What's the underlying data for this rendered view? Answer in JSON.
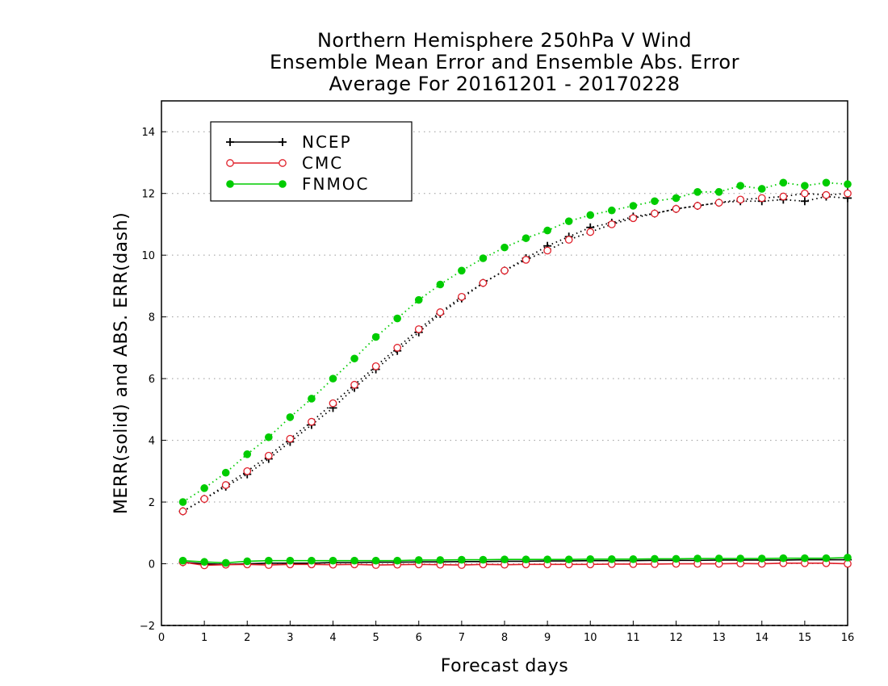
{
  "chart_data": {
    "type": "line",
    "title": "Northern Hemisphere 250hPa V Wind",
    "subtitle": "Ensemble Mean Error and Ensemble Abs. Error",
    "subtitle2": "Average For 20161201 - 20170228",
    "xlabel": "Forecast days",
    "ylabel": "MERR(solid) and ABS. ERR(dash)",
    "xlim": [
      0,
      16
    ],
    "ylim": [
      -2,
      15
    ],
    "xticks": [
      0,
      1,
      2,
      3,
      4,
      5,
      6,
      7,
      8,
      9,
      10,
      11,
      12,
      13,
      14,
      15,
      16
    ],
    "yticks": [
      -2,
      0,
      2,
      4,
      6,
      8,
      10,
      12,
      14
    ],
    "grid": "horizontal dotted",
    "legend_position": "top-left",
    "x": [
      0.5,
      1,
      1.5,
      2,
      2.5,
      3,
      3.5,
      4,
      4.5,
      5,
      5.5,
      6,
      6.5,
      7,
      7.5,
      8,
      8.5,
      9,
      9.5,
      10,
      10.5,
      11,
      11.5,
      12,
      12.5,
      13,
      13.5,
      14,
      14.5,
      15,
      15.5,
      16
    ],
    "series": [
      {
        "name": "NCEP",
        "color": "#000000",
        "marker": "plus",
        "abs_err": [
          1.7,
          2.1,
          2.5,
          2.9,
          3.4,
          3.95,
          4.5,
          5.05,
          5.7,
          6.3,
          6.9,
          7.5,
          8.1,
          8.6,
          9.1,
          9.5,
          9.9,
          10.3,
          10.6,
          10.9,
          11.05,
          11.25,
          11.35,
          11.5,
          11.6,
          11.7,
          11.75,
          11.75,
          11.8,
          11.75,
          11.9,
          11.85
        ],
        "mean_err": [
          0.05,
          0.0,
          -0.02,
          0.0,
          0.02,
          0.02,
          0.02,
          0.04,
          0.04,
          0.05,
          0.05,
          0.06,
          0.06,
          0.07,
          0.07,
          0.08,
          0.08,
          0.09,
          0.09,
          0.1,
          0.1,
          0.1,
          0.11,
          0.11,
          0.11,
          0.12,
          0.12,
          0.12,
          0.12,
          0.13,
          0.13,
          0.13
        ]
      },
      {
        "name": "CMC",
        "color": "#e0202a",
        "marker": "open-circle",
        "abs_err": [
          1.7,
          2.1,
          2.55,
          3.0,
          3.5,
          4.05,
          4.6,
          5.2,
          5.8,
          6.4,
          7.0,
          7.6,
          8.15,
          8.65,
          9.1,
          9.5,
          9.85,
          10.15,
          10.5,
          10.75,
          11.0,
          11.2,
          11.35,
          11.5,
          11.6,
          11.7,
          11.8,
          11.85,
          11.9,
          12.0,
          11.95,
          12.0
        ],
        "mean_err": [
          0.05,
          -0.05,
          -0.03,
          -0.02,
          -0.04,
          -0.02,
          -0.02,
          -0.03,
          -0.02,
          -0.04,
          -0.03,
          -0.02,
          -0.03,
          -0.04,
          -0.02,
          -0.03,
          -0.02,
          -0.02,
          -0.02,
          -0.02,
          -0.01,
          -0.01,
          -0.01,
          0.0,
          0.0,
          0.0,
          0.01,
          0.0,
          0.02,
          0.02,
          0.02,
          0.0
        ]
      },
      {
        "name": "FNMOC",
        "color": "#00cc00",
        "marker": "filled-circle",
        "abs_err": [
          2.0,
          2.45,
          2.95,
          3.55,
          4.1,
          4.75,
          5.35,
          6.0,
          6.65,
          7.35,
          7.95,
          8.55,
          9.05,
          9.5,
          9.9,
          10.25,
          10.55,
          10.8,
          11.1,
          11.3,
          11.45,
          11.6,
          11.75,
          11.85,
          12.05,
          12.05,
          12.25,
          12.15,
          12.35,
          12.25,
          12.35,
          12.3
        ],
        "mean_err": [
          0.1,
          0.06,
          0.03,
          0.08,
          0.1,
          0.1,
          0.1,
          0.1,
          0.1,
          0.1,
          0.1,
          0.12,
          0.12,
          0.13,
          0.13,
          0.14,
          0.14,
          0.14,
          0.14,
          0.15,
          0.15,
          0.15,
          0.16,
          0.16,
          0.17,
          0.17,
          0.17,
          0.17,
          0.18,
          0.18,
          0.18,
          0.2
        ]
      }
    ]
  }
}
